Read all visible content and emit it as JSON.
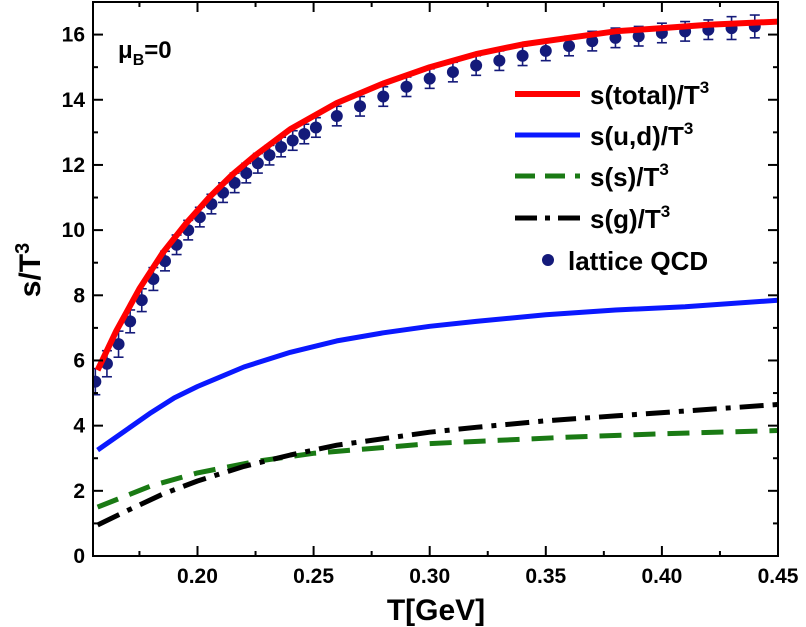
{
  "chart_data": {
    "type": "line",
    "annotation": {
      "main": "μ",
      "sub": "B",
      "rest": "=0"
    },
    "xlabel": "T[GeV]",
    "ylabel": {
      "main": "s/T",
      "sup": "3"
    },
    "xlim": [
      0.155,
      0.45
    ],
    "ylim": [
      0,
      17
    ],
    "xticks": [
      0.2,
      0.25,
      0.3,
      0.35,
      0.4,
      0.45
    ],
    "xtick_labels": [
      "0.20",
      "0.25",
      "0.30",
      "0.35",
      "0.40",
      "0.45"
    ],
    "yticks": [
      0,
      2,
      4,
      6,
      8,
      10,
      12,
      14,
      16
    ],
    "ytick_labels": [
      "0",
      "2",
      "4",
      "6",
      "8",
      "10",
      "12",
      "14",
      "16"
    ],
    "grid": false,
    "legend_position": "right",
    "series": [
      {
        "name": "s(total)/T",
        "name_sup": "3",
        "style": "solid",
        "color": "#ff0000",
        "x": [
          0.157,
          0.165,
          0.175,
          0.185,
          0.195,
          0.205,
          0.215,
          0.225,
          0.24,
          0.26,
          0.28,
          0.3,
          0.32,
          0.34,
          0.36,
          0.38,
          0.4,
          0.42,
          0.45
        ],
        "y": [
          5.7,
          6.9,
          8.2,
          9.3,
          10.2,
          11.0,
          11.7,
          12.3,
          13.1,
          13.9,
          14.5,
          15.0,
          15.4,
          15.7,
          15.9,
          16.1,
          16.2,
          16.3,
          16.4
        ]
      },
      {
        "name": "s(u,d)/T",
        "name_sup": "3",
        "style": "solid",
        "color": "#0a18ff",
        "x": [
          0.157,
          0.17,
          0.18,
          0.19,
          0.2,
          0.22,
          0.24,
          0.26,
          0.28,
          0.3,
          0.32,
          0.35,
          0.38,
          0.41,
          0.45
        ],
        "y": [
          3.25,
          3.9,
          4.4,
          4.85,
          5.2,
          5.8,
          6.25,
          6.6,
          6.85,
          7.05,
          7.2,
          7.4,
          7.55,
          7.65,
          7.85
        ]
      },
      {
        "name": "s(s)/T",
        "name_sup": "3",
        "style": "dashed",
        "color": "#1a7a14",
        "x": [
          0.157,
          0.18,
          0.2,
          0.225,
          0.25,
          0.275,
          0.3,
          0.33,
          0.36,
          0.4,
          0.45
        ],
        "y": [
          1.5,
          2.15,
          2.55,
          2.9,
          3.15,
          3.3,
          3.45,
          3.55,
          3.65,
          3.75,
          3.85
        ]
      },
      {
        "name": "s(g)/T",
        "name_sup": "3",
        "style": "dashdot",
        "color": "#000000",
        "x": [
          0.157,
          0.17,
          0.185,
          0.2,
          0.22,
          0.24,
          0.26,
          0.28,
          0.3,
          0.32,
          0.35,
          0.38,
          0.41,
          0.45
        ],
        "y": [
          0.95,
          1.4,
          1.9,
          2.3,
          2.75,
          3.1,
          3.4,
          3.6,
          3.8,
          3.95,
          4.15,
          4.3,
          4.45,
          4.65
        ]
      }
    ],
    "scatter_series": {
      "name": "lattice QCD",
      "color": "#141a7a",
      "x": [
        0.156,
        0.161,
        0.166,
        0.171,
        0.176,
        0.181,
        0.186,
        0.191,
        0.196,
        0.201,
        0.206,
        0.211,
        0.216,
        0.221,
        0.226,
        0.231,
        0.236,
        0.241,
        0.246,
        0.251,
        0.26,
        0.27,
        0.28,
        0.29,
        0.3,
        0.31,
        0.32,
        0.33,
        0.34,
        0.35,
        0.36,
        0.37,
        0.38,
        0.39,
        0.4,
        0.41,
        0.42,
        0.43,
        0.44
      ],
      "y": [
        5.35,
        5.9,
        6.5,
        7.2,
        7.85,
        8.5,
        9.05,
        9.55,
        10.0,
        10.4,
        10.8,
        11.15,
        11.45,
        11.75,
        12.05,
        12.3,
        12.55,
        12.75,
        12.95,
        13.15,
        13.5,
        13.8,
        14.1,
        14.4,
        14.65,
        14.85,
        15.05,
        15.2,
        15.35,
        15.5,
        15.65,
        15.8,
        15.9,
        15.95,
        16.05,
        16.1,
        16.15,
        16.2,
        16.25
      ],
      "err": [
        0.4,
        0.4,
        0.4,
        0.35,
        0.35,
        0.35,
        0.3,
        0.3,
        0.3,
        0.3,
        0.3,
        0.3,
        0.3,
        0.3,
        0.3,
        0.3,
        0.3,
        0.3,
        0.3,
        0.3,
        0.3,
        0.3,
        0.3,
        0.3,
        0.3,
        0.3,
        0.3,
        0.3,
        0.3,
        0.3,
        0.3,
        0.3,
        0.3,
        0.3,
        0.3,
        0.3,
        0.3,
        0.35,
        0.35
      ]
    }
  }
}
